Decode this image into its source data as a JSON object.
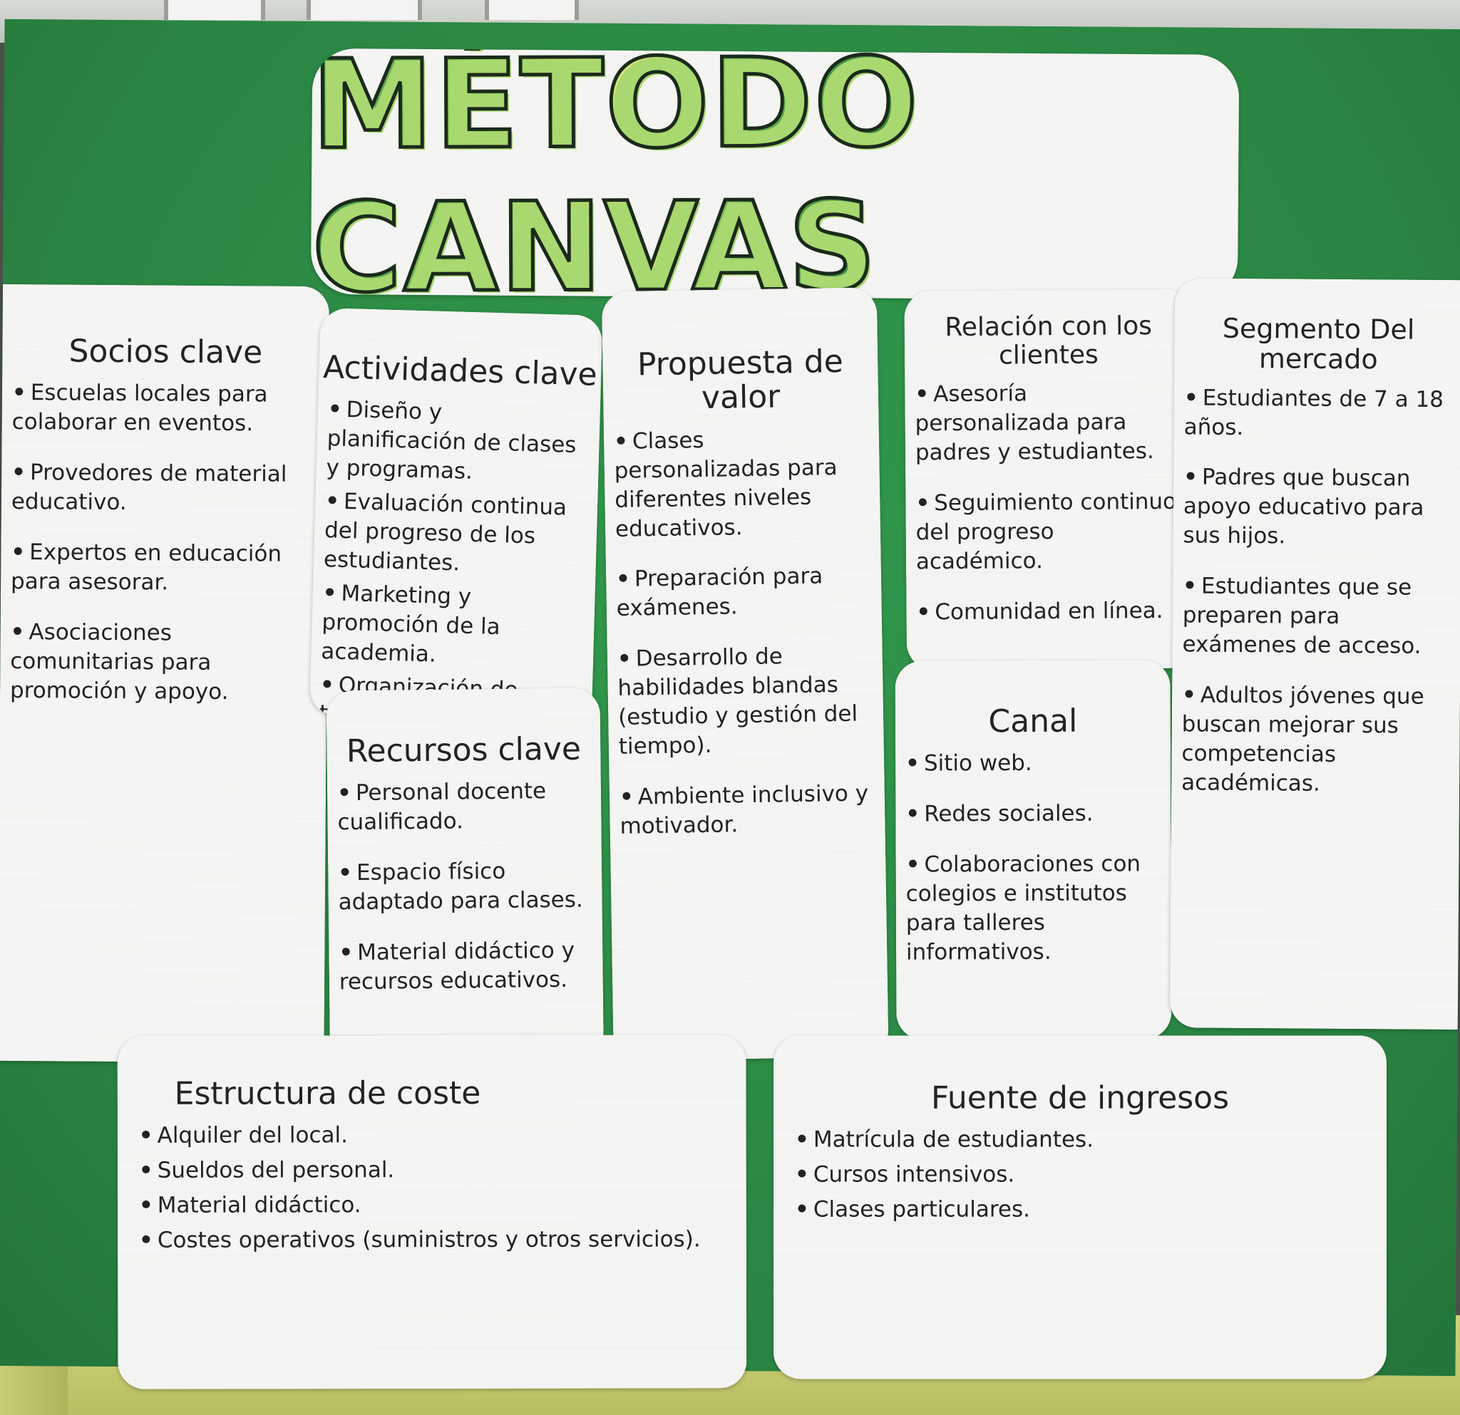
{
  "title": "MÉTODO CANVAS",
  "colors": {
    "board": "#2c8a45",
    "paper": "#f4f4f2",
    "title_fill": "#6cbf55",
    "ink": "#222222"
  },
  "sections": {
    "socios": {
      "title": "Socios clave",
      "items": [
        "Escuelas locales para colaborar en eventos.",
        "Provedores de material educativo.",
        "Expertos en educación para asesorar.",
        "Asociaciones comunitarias para promoción y apoyo."
      ]
    },
    "actividades": {
      "title": "Actividades clave",
      "items": [
        "Diseño y planificación de clases y programas.",
        "Evaluación continua del progreso de los estudiantes.",
        "Marketing y promoción de la academia.",
        "Organización de talleres y eventos."
      ]
    },
    "recursos": {
      "title": "Recursos clave",
      "items": [
        "Personal docente cualificado.",
        "Espacio físico adaptado para clases.",
        "Material didáctico y recursos educativos."
      ]
    },
    "propuesta": {
      "title": "Propuesta de valor",
      "items": [
        "Clases personalizadas para diferentes niveles educativos.",
        "Preparación para exámenes.",
        "Desarrollo de habilidades blandas (estudio y gestión del tiempo).",
        "Ambiente inclusivo y motivador."
      ]
    },
    "relacion": {
      "title": "Relación con los clientes",
      "items": [
        "Asesoría personalizada para padres y estudiantes.",
        "Seguimiento continuo del progreso académico.",
        "Comunidad en línea."
      ]
    },
    "canal": {
      "title": "Canal",
      "items": [
        "Sitio web.",
        "Redes sociales.",
        "Colaboraciones con colegios e institutos para talleres informativos."
      ]
    },
    "segmento": {
      "title": "Segmento Del mercado",
      "items": [
        "Estudiantes de 7 a 18 años.",
        "Padres que buscan apoyo educativo para sus hijos.",
        "Estudiantes que se preparen para exámenes de acceso.",
        "Adultos jóvenes que buscan mejorar sus competencias académicas."
      ]
    },
    "estructura": {
      "title": "Estructura de coste",
      "items": [
        "Alquiler del local.",
        "Sueldos del personal.",
        "Material didáctico.",
        "Costes operativos (suministros y otros servicios)."
      ]
    },
    "fuente": {
      "title": "Fuente de ingresos",
      "items": [
        "Matrícula de estudiantes.",
        "Cursos intensivos.",
        "Clases particulares."
      ]
    }
  }
}
